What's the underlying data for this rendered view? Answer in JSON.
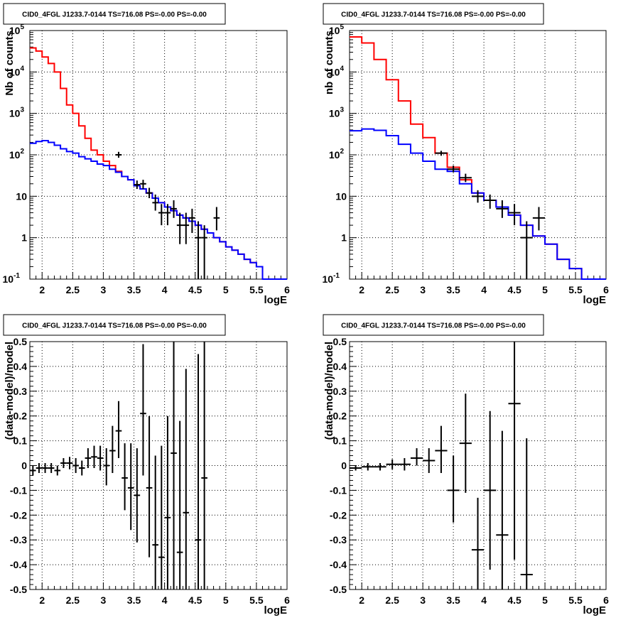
{
  "colors": {
    "model_total": "#ff0000",
    "model_component": "#0000ff",
    "data": "#000000",
    "grid": "#000000"
  },
  "chart_data": [
    {
      "type": "line",
      "panel": "top-left",
      "title": "CID0_4FGL J1233.7-0144 TS=716.08 PS=-0.00 PS=-0.00",
      "xlabel": "logE",
      "ylabel": "Nb of counts",
      "xlim": [
        1.8,
        6.0
      ],
      "ylim": [
        0.1,
        100000
      ],
      "yscale": "log",
      "grid": true,
      "xticks": [
        2,
        2.5,
        3,
        3.5,
        4,
        4.5,
        5,
        5.5,
        6
      ],
      "xtick_labels": [
        "2",
        "2.5",
        "3",
        "3.5",
        "4",
        "4.5",
        "5",
        "5.5",
        "6"
      ],
      "yticks": [
        0.1,
        1,
        10,
        100,
        1000,
        10000,
        100000
      ],
      "ytick_labels": [
        "10^-1",
        "1",
        "10",
        "10^2",
        "10^3",
        "10^4",
        "10^5"
      ],
      "bin_width": 0.1,
      "series": [
        {
          "kind": "step",
          "color": "red",
          "x": [
            1.8,
            1.9,
            2.0,
            2.1,
            2.2,
            2.3,
            2.4,
            2.5,
            2.6,
            2.7,
            2.8,
            2.9,
            3.0,
            3.1,
            3.2,
            3.3,
            3.4,
            3.5,
            3.6,
            3.7,
            3.8,
            3.9,
            4.0,
            4.1,
            4.2,
            4.3,
            4.4,
            4.5,
            4.6,
            4.7,
            4.8,
            4.9,
            5.0,
            5.1,
            5.2,
            5.3,
            5.4,
            5.5,
            5.6,
            5.7,
            5.8,
            5.9
          ],
          "values": [
            38000,
            32000,
            23000,
            16000,
            10000,
            4000,
            1600,
            1000,
            500,
            250,
            130,
            100,
            70,
            55,
            40,
            30,
            25,
            18,
            15,
            12,
            9,
            7,
            5.5,
            4.5,
            3.5,
            3,
            2.5,
            2,
            1.6,
            1.3,
            1,
            0.8,
            0.6,
            0.5,
            0.4,
            0.3,
            0.25,
            0.2,
            0.1,
            0.1,
            0.1,
            0.1
          ]
        },
        {
          "kind": "step",
          "color": "blue",
          "x": [
            1.8,
            1.9,
            2.0,
            2.1,
            2.2,
            2.3,
            2.4,
            2.5,
            2.6,
            2.7,
            2.8,
            2.9,
            3.0,
            3.1,
            3.2,
            3.3,
            3.4,
            3.5,
            3.6,
            3.7,
            3.8,
            3.9,
            4.0,
            4.1,
            4.2,
            4.3,
            4.4,
            4.5,
            4.6,
            4.7,
            4.8,
            4.9,
            5.0,
            5.1,
            5.2,
            5.3,
            5.4,
            5.5,
            5.6,
            5.7,
            5.8,
            5.9
          ],
          "values": [
            190,
            210,
            220,
            200,
            170,
            140,
            120,
            110,
            90,
            80,
            70,
            60,
            55,
            45,
            38,
            30,
            25,
            18,
            15,
            12,
            9,
            7,
            5.5,
            4.5,
            3.5,
            3,
            2.5,
            2,
            1.6,
            1.3,
            1,
            0.8,
            0.6,
            0.5,
            0.4,
            0.3,
            0.25,
            0.2,
            0.1,
            0.1,
            0.1,
            0.1
          ]
        }
      ],
      "points": [
        {
          "x": 3.25,
          "y": 100,
          "ylo": 85,
          "yhi": 118
        },
        {
          "x": 3.55,
          "y": 19,
          "ylo": 15,
          "yhi": 24
        },
        {
          "x": 3.65,
          "y": 20,
          "ylo": 15,
          "yhi": 25
        },
        {
          "x": 3.75,
          "y": 12,
          "ylo": 9,
          "yhi": 16
        },
        {
          "x": 3.85,
          "y": 7,
          "ylo": 4.5,
          "yhi": 11
        },
        {
          "x": 3.95,
          "y": 4,
          "ylo": 2,
          "yhi": 6.5
        },
        {
          "x": 4.05,
          "y": 4,
          "ylo": 2,
          "yhi": 6.5
        },
        {
          "x": 4.15,
          "y": 5,
          "ylo": 3,
          "yhi": 8
        },
        {
          "x": 4.25,
          "y": 2,
          "ylo": 0.7,
          "yhi": 4
        },
        {
          "x": 4.35,
          "y": 2,
          "ylo": 0.7,
          "yhi": 4
        },
        {
          "x": 4.45,
          "y": 3,
          "ylo": 1.3,
          "yhi": 5
        },
        {
          "x": 4.55,
          "y": 1,
          "ylo": 0.1,
          "yhi": 2.5
        },
        {
          "x": 4.65,
          "y": 1,
          "ylo": 0.1,
          "yhi": 2
        },
        {
          "x": 4.85,
          "y": 3,
          "ylo": 1.5,
          "yhi": 5.5
        }
      ]
    },
    {
      "type": "line",
      "panel": "top-right",
      "title": "CID0_4FGL J1233.7-0144 TS=716.08 PS=-0.00 PS=-0.00",
      "xlabel": "logE",
      "ylabel": "nb of counts",
      "xlim": [
        1.8,
        6.0
      ],
      "ylim": [
        0.1,
        100000
      ],
      "yscale": "log",
      "grid": true,
      "xticks": [
        2,
        2.5,
        3,
        3.5,
        4,
        4.5,
        5,
        5.5,
        6
      ],
      "xtick_labels": [
        "2",
        "2.5",
        "3",
        "3.5",
        "4",
        "4.5",
        "5",
        "5.5",
        "6"
      ],
      "yticks": [
        0.1,
        1,
        10,
        100,
        1000,
        10000,
        100000
      ],
      "ytick_labels": [
        "10^-1",
        "1",
        "10",
        "10^2",
        "10^3",
        "10^4",
        "10^5"
      ],
      "bin_width": 0.2,
      "series": [
        {
          "kind": "step",
          "color": "red",
          "x": [
            1.8,
            2.0,
            2.2,
            2.4,
            2.6,
            2.8,
            3.0,
            3.2,
            3.4,
            3.6,
            3.8,
            4.0,
            4.2,
            4.4,
            4.6,
            4.8,
            5.0,
            5.2,
            5.4,
            5.6,
            5.8
          ],
          "values": [
            70000,
            50000,
            20000,
            6500,
            2000,
            550,
            260,
            110,
            50,
            25,
            12,
            8,
            5.5,
            3.5,
            2,
            1.1,
            0.7,
            0.3,
            0.18,
            0.1,
            0.1
          ]
        },
        {
          "kind": "step",
          "color": "blue",
          "x": [
            1.8,
            2.0,
            2.2,
            2.4,
            2.6,
            2.8,
            3.0,
            3.2,
            3.4,
            3.6,
            3.8,
            4.0,
            4.2,
            4.4,
            4.6,
            4.8,
            5.0,
            5.2,
            5.4,
            5.6,
            5.8
          ],
          "values": [
            380,
            420,
            390,
            290,
            180,
            110,
            70,
            45,
            40,
            20,
            12,
            8,
            5.5,
            3.5,
            2,
            1.1,
            0.7,
            0.3,
            0.18,
            0.1,
            0.1
          ]
        }
      ],
      "points": [
        {
          "x": 3.3,
          "y": 110,
          "ylo": 95,
          "yhi": 125
        },
        {
          "x": 3.5,
          "y": 45,
          "ylo": 38,
          "yhi": 55
        },
        {
          "x": 3.7,
          "y": 28,
          "ylo": 22,
          "yhi": 35
        },
        {
          "x": 3.9,
          "y": 10,
          "ylo": 7,
          "yhi": 14
        },
        {
          "x": 4.1,
          "y": 8,
          "ylo": 5,
          "yhi": 11
        },
        {
          "x": 4.3,
          "y": 5,
          "ylo": 3,
          "yhi": 8
        },
        {
          "x": 4.5,
          "y": 4,
          "ylo": 2,
          "yhi": 6.5
        },
        {
          "x": 4.7,
          "y": 1,
          "ylo": 0.1,
          "yhi": 2.5
        },
        {
          "x": 4.9,
          "y": 3,
          "ylo": 1.5,
          "yhi": 5.5
        }
      ]
    },
    {
      "type": "scatter",
      "panel": "bottom-left",
      "title": "CID0_4FGL J1233.7-0144 TS=716.08 PS=-0.00 PS=-0.00",
      "xlabel": "logE",
      "ylabel": "(data-model)/model",
      "xlim": [
        1.8,
        6.0
      ],
      "ylim": [
        -0.5,
        0.5
      ],
      "grid": true,
      "xticks": [
        2,
        2.5,
        3,
        3.5,
        4,
        4.5,
        5,
        5.5,
        6
      ],
      "xtick_labels": [
        "2",
        "2.5",
        "3",
        "3.5",
        "4",
        "4.5",
        "5",
        "5.5",
        "6"
      ],
      "yticks": [
        -0.5,
        -0.4,
        -0.3,
        -0.2,
        -0.1,
        0,
        0.1,
        0.2,
        0.3,
        0.4,
        0.5
      ],
      "ytick_labels": [
        "-0.5",
        "-0.4",
        "-0.3",
        "-0.2",
        "-0.1",
        "0",
        "0.1",
        "0.2",
        "0.3",
        "0.4",
        "0.5"
      ],
      "xerr": 0.05,
      "points": [
        {
          "x": 1.85,
          "y": -0.02,
          "ylo": -0.04,
          "yhi": 0.0
        },
        {
          "x": 1.95,
          "y": -0.01,
          "ylo": -0.03,
          "yhi": 0.01
        },
        {
          "x": 2.05,
          "y": -0.01,
          "ylo": -0.03,
          "yhi": 0.01
        },
        {
          "x": 2.15,
          "y": -0.01,
          "ylo": -0.03,
          "yhi": 0.01
        },
        {
          "x": 2.25,
          "y": -0.02,
          "ylo": -0.04,
          "yhi": 0.0
        },
        {
          "x": 2.35,
          "y": 0.01,
          "ylo": -0.01,
          "yhi": 0.03
        },
        {
          "x": 2.45,
          "y": 0.01,
          "ylo": -0.015,
          "yhi": 0.035
        },
        {
          "x": 2.55,
          "y": 0.0,
          "ylo": -0.03,
          "yhi": 0.03
        },
        {
          "x": 2.65,
          "y": -0.01,
          "ylo": -0.04,
          "yhi": 0.02
        },
        {
          "x": 2.75,
          "y": 0.03,
          "ylo": -0.01,
          "yhi": 0.07
        },
        {
          "x": 2.85,
          "y": 0.035,
          "ylo": -0.01,
          "yhi": 0.08
        },
        {
          "x": 2.95,
          "y": 0.03,
          "ylo": -0.02,
          "yhi": 0.08
        },
        {
          "x": 3.05,
          "y": 0.0,
          "ylo": -0.08,
          "yhi": 0.07
        },
        {
          "x": 3.15,
          "y": 0.06,
          "ylo": -0.03,
          "yhi": 0.16
        },
        {
          "x": 3.25,
          "y": 0.14,
          "ylo": 0.03,
          "yhi": 0.26
        },
        {
          "x": 3.35,
          "y": -0.05,
          "ylo": -0.18,
          "yhi": 0.09
        },
        {
          "x": 3.45,
          "y": -0.09,
          "ylo": -0.26,
          "yhi": 0.09
        },
        {
          "x": 3.55,
          "y": -0.12,
          "ylo": -0.31,
          "yhi": 0.07
        },
        {
          "x": 3.65,
          "y": 0.21,
          "ylo": -0.04,
          "yhi": 0.49
        },
        {
          "x": 3.75,
          "y": -0.09,
          "ylo": -0.37,
          "yhi": 0.2
        },
        {
          "x": 3.85,
          "y": -0.32,
          "ylo": -0.5,
          "yhi": 0.04
        },
        {
          "x": 3.95,
          "y": -0.37,
          "ylo": -0.5,
          "yhi": 0.08
        },
        {
          "x": 4.05,
          "y": -0.21,
          "ylo": -0.5,
          "yhi": 0.2
        },
        {
          "x": 4.15,
          "y": 0.05,
          "ylo": -0.5,
          "yhi": 0.5
        },
        {
          "x": 4.25,
          "y": -0.35,
          "ylo": -0.5,
          "yhi": 0.18
        },
        {
          "x": 4.35,
          "y": -0.19,
          "ylo": -0.5,
          "yhi": 0.39
        },
        {
          "x": 4.55,
          "y": -0.3,
          "ylo": -0.5,
          "yhi": 0.45
        },
        {
          "x": 4.65,
          "y": -0.05,
          "ylo": -0.5,
          "yhi": 0.5
        }
      ]
    },
    {
      "type": "scatter",
      "panel": "bottom-right",
      "title": "CID0_4FGL J1233.7-0144 TS=716.08 PS=-0.00 PS=-0.00",
      "xlabel": "logE",
      "ylabel": "(data-model)/model",
      "xlim": [
        1.8,
        6.0
      ],
      "ylim": [
        -0.5,
        0.5
      ],
      "grid": true,
      "xticks": [
        2,
        2.5,
        3,
        3.5,
        4,
        4.5,
        5,
        5.5,
        6
      ],
      "xtick_labels": [
        "2",
        "2.5",
        "3",
        "3.5",
        "4",
        "4.5",
        "5",
        "5.5",
        "6"
      ],
      "yticks": [
        -0.5,
        -0.4,
        -0.3,
        -0.2,
        -0.1,
        0,
        0.1,
        0.2,
        0.3,
        0.4,
        0.5
      ],
      "ytick_labels": [
        "-0.5",
        "-0.4",
        "-0.3",
        "-0.2",
        "-0.1",
        "0",
        "0.1",
        "0.2",
        "0.3",
        "0.4",
        "0.5"
      ],
      "xerr": 0.1,
      "points": [
        {
          "x": 1.9,
          "y": -0.01,
          "ylo": -0.02,
          "yhi": 0.0
        },
        {
          "x": 2.1,
          "y": -0.005,
          "ylo": -0.02,
          "yhi": 0.01
        },
        {
          "x": 2.3,
          "y": -0.005,
          "ylo": -0.02,
          "yhi": 0.01
        },
        {
          "x": 2.5,
          "y": 0.005,
          "ylo": -0.015,
          "yhi": 0.025
        },
        {
          "x": 2.7,
          "y": 0.005,
          "ylo": -0.02,
          "yhi": 0.03
        },
        {
          "x": 2.9,
          "y": 0.03,
          "ylo": 0.0,
          "yhi": 0.07
        },
        {
          "x": 3.1,
          "y": 0.02,
          "ylo": -0.03,
          "yhi": 0.07
        },
        {
          "x": 3.3,
          "y": 0.06,
          "ylo": -0.03,
          "yhi": 0.16
        },
        {
          "x": 3.5,
          "y": -0.1,
          "ylo": -0.23,
          "yhi": 0.04
        },
        {
          "x": 3.7,
          "y": 0.09,
          "ylo": -0.11,
          "yhi": 0.29
        },
        {
          "x": 3.9,
          "y": -0.34,
          "ylo": -0.5,
          "yhi": -0.13
        },
        {
          "x": 4.1,
          "y": -0.1,
          "ylo": -0.42,
          "yhi": 0.22
        },
        {
          "x": 4.3,
          "y": -0.28,
          "ylo": -0.5,
          "yhi": 0.14
        },
        {
          "x": 4.5,
          "y": 0.25,
          "ylo": -0.38,
          "yhi": 0.5
        },
        {
          "x": 4.7,
          "y": -0.44,
          "ylo": -0.5,
          "yhi": 0.11
        }
      ]
    }
  ]
}
